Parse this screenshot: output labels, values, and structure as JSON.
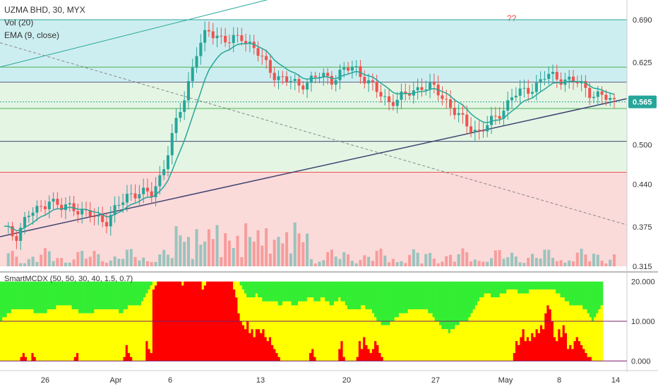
{
  "header": {
    "symbol_line": "UZMA BHD, 30, MYX",
    "vol_label": "Vol (20)",
    "ema_label": "EMA (9, close)"
  },
  "indicator": {
    "label": "SmartMCDX (50, 50, 30, 40, 1.5, 0.7)"
  },
  "annotation": {
    "text": "??"
  },
  "colors": {
    "up": "#26a69a",
    "down": "#ef5350",
    "band_cyan": "#cdeef0",
    "band_green": "#e4f5e4",
    "band_red": "#fbdada",
    "ema": "#26a69a",
    "price_badge": "#26a69a",
    "ind_red": "#ff0000",
    "ind_yellow": "#ffff00",
    "ind_green": "#33ee33"
  },
  "chart_data": [
    {
      "type": "line",
      "name": "UZMA BHD, 30, MYX",
      "x_ticks": [
        "26",
        "Apr",
        "6",
        "13",
        "20",
        "27",
        "May",
        "8",
        "14"
      ],
      "y_ticks": [
        "0.690",
        "0.625",
        "0.565",
        "0.500",
        "0.440",
        "0.375",
        "0.315"
      ],
      "ylim": [
        0.315,
        0.72
      ],
      "current_price": "0.565",
      "horizontal_levels": [
        0.69,
        0.618,
        0.595,
        0.565,
        0.555,
        0.505,
        0.458
      ],
      "close_path": [
        {
          "x": 0,
          "y": 0.372
        },
        {
          "x": 5,
          "y": 0.36
        },
        {
          "x": 10,
          "y": 0.392
        },
        {
          "x": 15,
          "y": 0.4
        },
        {
          "x": 20,
          "y": 0.418
        },
        {
          "x": 25,
          "y": 0.402
        },
        {
          "x": 30,
          "y": 0.408
        },
        {
          "x": 35,
          "y": 0.396
        },
        {
          "x": 40,
          "y": 0.39
        },
        {
          "x": 45,
          "y": 0.384
        },
        {
          "x": 50,
          "y": 0.404
        },
        {
          "x": 55,
          "y": 0.425
        },
        {
          "x": 60,
          "y": 0.428
        },
        {
          "x": 65,
          "y": 0.422
        },
        {
          "x": 70,
          "y": 0.46
        },
        {
          "x": 75,
          "y": 0.52
        },
        {
          "x": 80,
          "y": 0.575
        },
        {
          "x": 85,
          "y": 0.64
        },
        {
          "x": 90,
          "y": 0.672
        },
        {
          "x": 95,
          "y": 0.666
        },
        {
          "x": 100,
          "y": 0.655
        },
        {
          "x": 105,
          "y": 0.665
        },
        {
          "x": 110,
          "y": 0.65
        },
        {
          "x": 115,
          "y": 0.625
        },
        {
          "x": 120,
          "y": 0.605
        },
        {
          "x": 125,
          "y": 0.598
        },
        {
          "x": 130,
          "y": 0.59
        },
        {
          "x": 135,
          "y": 0.598
        },
        {
          "x": 140,
          "y": 0.605
        },
        {
          "x": 145,
          "y": 0.6
        },
        {
          "x": 150,
          "y": 0.612
        },
        {
          "x": 155,
          "y": 0.618
        },
        {
          "x": 160,
          "y": 0.6
        },
        {
          "x": 165,
          "y": 0.58
        },
        {
          "x": 170,
          "y": 0.566
        },
        {
          "x": 175,
          "y": 0.57
        },
        {
          "x": 180,
          "y": 0.58
        },
        {
          "x": 185,
          "y": 0.59
        },
        {
          "x": 190,
          "y": 0.585
        },
        {
          "x": 195,
          "y": 0.57
        },
        {
          "x": 200,
          "y": 0.548
        },
        {
          "x": 205,
          "y": 0.528
        },
        {
          "x": 210,
          "y": 0.52
        },
        {
          "x": 215,
          "y": 0.532
        },
        {
          "x": 220,
          "y": 0.55
        },
        {
          "x": 225,
          "y": 0.575
        },
        {
          "x": 230,
          "y": 0.58
        },
        {
          "x": 235,
          "y": 0.59
        },
        {
          "x": 240,
          "y": 0.605
        },
        {
          "x": 245,
          "y": 0.602
        },
        {
          "x": 250,
          "y": 0.598
        },
        {
          "x": 255,
          "y": 0.592
        },
        {
          "x": 260,
          "y": 0.578
        },
        {
          "x": 265,
          "y": 0.572
        },
        {
          "x": 270,
          "y": 0.566
        }
      ]
    },
    {
      "type": "area",
      "name": "SmartMCDX (50, 50, 30, 40, 1.5, 0.7)",
      "y_ticks": [
        "20.000",
        "10.000",
        "0.000"
      ],
      "ylim": [
        -1,
        21
      ],
      "series": [
        {
          "name": "red",
          "values": [
            0,
            0,
            0,
            0,
            0,
            0,
            0,
            0,
            0,
            1,
            2,
            1,
            0,
            0,
            2,
            1,
            0,
            0,
            0,
            0,
            0,
            0,
            0,
            0,
            0,
            0,
            0,
            0,
            0,
            0,
            0,
            0,
            0,
            1,
            2,
            0,
            0,
            0,
            0,
            0,
            0,
            0,
            0,
            0,
            0,
            0,
            0,
            0,
            0,
            0,
            0,
            0,
            0,
            0,
            0,
            1,
            4,
            2,
            1,
            0,
            0,
            0,
            0,
            0,
            0,
            5,
            3,
            2,
            18,
            19,
            20,
            20,
            20,
            20,
            20,
            20,
            20,
            20,
            20,
            20,
            20,
            19,
            20,
            20,
            20,
            20,
            20,
            20,
            20,
            20,
            18,
            19,
            20,
            20,
            20,
            20,
            20,
            20,
            20,
            20,
            20,
            20,
            20,
            20,
            18,
            16,
            12,
            10,
            9,
            8,
            10,
            7,
            8,
            6,
            8,
            8,
            7,
            8,
            6,
            5,
            6,
            4,
            3,
            2,
            1,
            0,
            0,
            0,
            0,
            0,
            0,
            0,
            0,
            0,
            0,
            0,
            0,
            0,
            2,
            3,
            1,
            0,
            0,
            0,
            0,
            0,
            0,
            0,
            0,
            0,
            0,
            3,
            5,
            1,
            0,
            0,
            0,
            0,
            0,
            1,
            5,
            3,
            6,
            4,
            3,
            2,
            3,
            5,
            4,
            2,
            1,
            0,
            0,
            0,
            0,
            0,
            0,
            0,
            0,
            0,
            0,
            0,
            0,
            0,
            0,
            0,
            0,
            0,
            0,
            0,
            0,
            0,
            0,
            0,
            0,
            0,
            0,
            0,
            0,
            0,
            0,
            0,
            0,
            0,
            0,
            0,
            0,
            0,
            0,
            0,
            0,
            0,
            0,
            0,
            0,
            0,
            0,
            0,
            0,
            0,
            0,
            0,
            0,
            0,
            0,
            0,
            0,
            0,
            0,
            2,
            5,
            4,
            6,
            8,
            5,
            6,
            5,
            7,
            6,
            8,
            7,
            9,
            8,
            12,
            14,
            13,
            10,
            6,
            5,
            8,
            6,
            9,
            7,
            3,
            4,
            3,
            5,
            6,
            5,
            4,
            3,
            2,
            1,
            1,
            0,
            0,
            0,
            0,
            0,
            0,
            0,
            0,
            0,
            0,
            0,
            0
          ]
        },
        {
          "name": "yellow",
          "values": [
            10,
            11,
            11,
            12,
            12,
            13,
            13,
            13,
            13,
            13,
            13,
            13,
            13,
            13,
            13,
            12,
            12,
            12,
            12,
            12,
            12,
            13,
            13,
            13,
            13,
            14,
            14,
            14,
            14,
            14,
            14,
            14,
            13,
            13,
            13,
            12,
            12,
            12,
            12,
            12,
            12,
            12,
            13,
            13,
            13,
            13,
            13,
            13,
            13,
            13,
            13,
            13,
            13,
            12,
            12,
            13,
            13,
            14,
            14,
            14,
            14,
            14,
            14,
            15,
            16,
            17,
            18,
            19,
            20,
            20,
            20,
            20,
            20,
            20,
            20,
            20,
            20,
            20,
            20,
            20,
            20,
            20,
            20,
            20,
            20,
            20,
            20,
            20,
            20,
            20,
            20,
            20,
            20,
            20,
            20,
            20,
            20,
            20,
            20,
            20,
            20,
            20,
            20,
            20,
            20,
            20,
            20,
            19,
            18,
            17,
            16,
            16,
            16,
            16,
            17,
            16,
            16,
            15,
            15,
            15,
            15,
            15,
            15,
            15,
            14,
            14,
            15,
            15,
            15,
            15,
            14,
            14,
            14,
            15,
            15,
            15,
            15,
            16,
            16,
            16,
            15,
            15,
            15,
            16,
            16,
            15,
            15,
            14,
            14,
            15,
            15,
            16,
            15,
            15,
            14,
            13,
            13,
            13,
            13,
            13,
            13,
            14,
            14,
            13,
            13,
            13,
            12,
            11,
            10,
            10,
            9,
            9,
            9,
            9,
            10,
            10,
            11,
            11,
            12,
            12,
            12,
            12,
            13,
            13,
            13,
            13,
            13,
            13,
            13,
            13,
            13,
            12,
            12,
            11,
            10,
            10,
            9,
            8,
            8,
            8,
            7,
            8,
            8,
            9,
            9,
            10,
            10,
            10,
            10,
            11,
            12,
            13,
            14,
            15,
            16,
            16,
            17,
            17,
            17,
            16,
            16,
            16,
            16,
            17,
            17,
            17,
            18,
            18,
            18,
            18,
            18,
            17,
            17,
            17,
            17,
            17,
            18,
            18,
            18,
            18,
            18,
            18,
            18,
            18,
            18,
            18,
            18,
            18,
            17,
            17,
            16,
            16,
            15,
            15,
            14,
            14,
            14,
            14,
            14,
            14,
            13,
            13,
            12,
            11,
            10,
            11,
            12,
            13,
            14
          ]
        }
      ]
    }
  ]
}
